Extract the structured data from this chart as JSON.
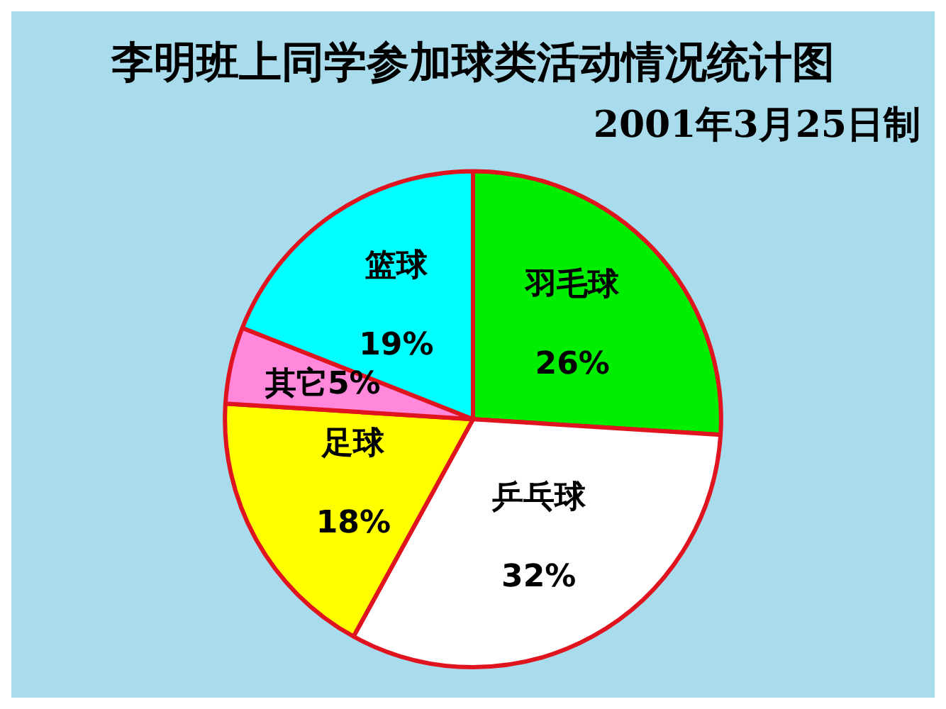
{
  "chart_data": {
    "type": "pie",
    "title": "李明班上同学参加球类活动情况统计图",
    "subtitle": "2001年3月25日制",
    "categories": [
      "羽毛球",
      "乒乓球",
      "足球",
      "其它",
      "篮球"
    ],
    "values": [
      26,
      32,
      18,
      5,
      19
    ],
    "value_labels": [
      "26%",
      "32%",
      "18%",
      "5%",
      "19%"
    ],
    "colors": [
      "#00ee00",
      "#ffffff",
      "#ffff00",
      "#ff88dd",
      "#00ffff"
    ],
    "legend": false
  }
}
